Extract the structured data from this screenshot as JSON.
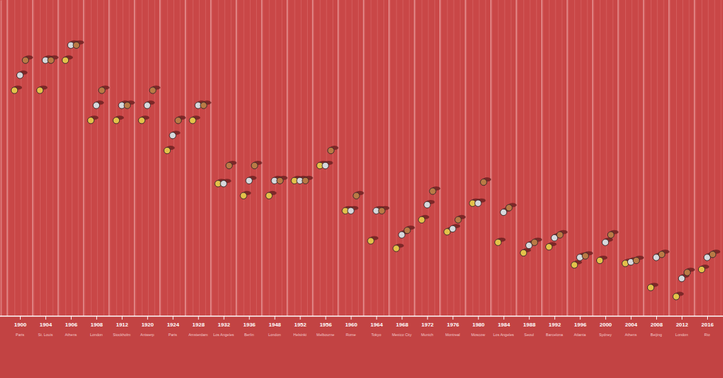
{
  "chart_data": {
    "type": "scatter",
    "marker": "circle",
    "tick_labels": "x",
    "categories": [
      "1900",
      "1904",
      "1906",
      "1908",
      "1912",
      "1920",
      "1924",
      "1928",
      "1932",
      "1936",
      "1948",
      "1952",
      "1956",
      "1960",
      "1964",
      "1968",
      "1972",
      "1976",
      "1980",
      "1984",
      "1988",
      "1992",
      "1996",
      "2000",
      "2004",
      "2008",
      "2012",
      "2016"
    ],
    "cities": [
      "Paris",
      "St. Louis",
      "Athens",
      "London",
      "Stockholm",
      "Antwerp",
      "Paris",
      "Amsterdam",
      "Los Angeles",
      "Berlin",
      "London",
      "Helsinki",
      "Melbourne",
      "Rome",
      "Tokyo",
      "Mexico City",
      "Munich",
      "Montreal",
      "Moscow",
      "Los Angeles",
      "Seoul",
      "Barcelona",
      "Atlanta",
      "Sydney",
      "Athens",
      "Beijing",
      "London",
      "Rio"
    ],
    "ylim": [
      11.6,
      9.5
    ],
    "yticks": [],
    "series": [
      {
        "color": "#e3c24a",
        "values": [
          11.0,
          11.0,
          11.2,
          10.8,
          10.8,
          10.8,
          10.6,
          10.8,
          10.38,
          10.3,
          10.3,
          10.4,
          10.5,
          10.2,
          10.0,
          9.95,
          10.14,
          10.06,
          10.25,
          9.99,
          9.92,
          9.96,
          9.84,
          9.87,
          9.85,
          9.69,
          9.63,
          9.81
        ]
      },
      {
        "color": "#d6d8dc",
        "values": [
          11.1,
          11.2,
          11.3,
          10.9,
          10.9,
          10.9,
          10.7,
          10.9,
          10.38,
          10.4,
          10.4,
          10.4,
          10.5,
          10.2,
          10.2,
          10.04,
          10.24,
          10.08,
          10.25,
          10.19,
          9.97,
          10.02,
          9.89,
          9.99,
          9.86,
          9.89,
          9.75,
          9.89
        ]
      },
      {
        "color": "#b97a45",
        "values": [
          11.2,
          11.2,
          11.3,
          11.0,
          10.9,
          11.0,
          10.8,
          10.9,
          10.5,
          10.5,
          10.4,
          10.4,
          10.6,
          10.3,
          10.2,
          10.07,
          10.33,
          10.14,
          10.39,
          10.22,
          9.99,
          10.04,
          9.9,
          10.04,
          9.87,
          9.91,
          9.79,
          9.91
        ]
      }
    ]
  }
}
